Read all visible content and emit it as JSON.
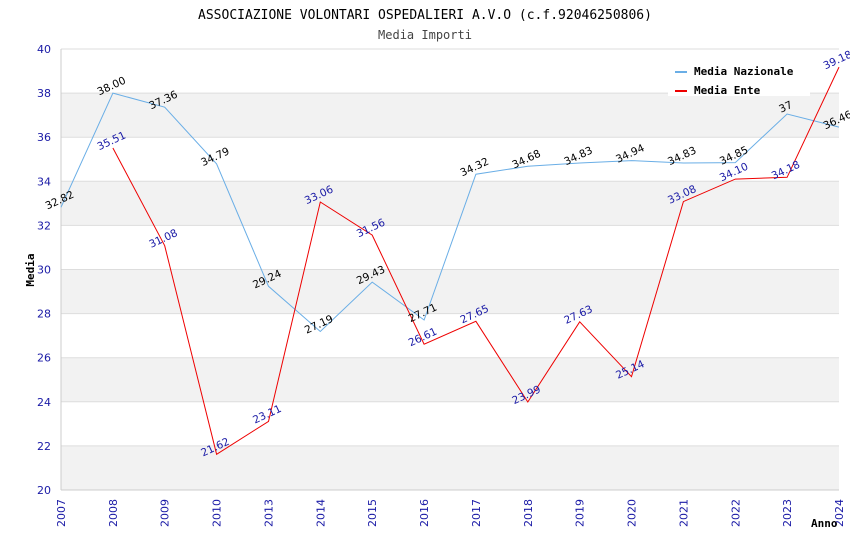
{
  "chart_data": {
    "type": "line",
    "title": "ASSOCIAZIONE VOLONTARI OSPEDALIERI A.V.O (c.f.92046250806)",
    "subtitle": "Media Importi",
    "xlabel": "Anno",
    "ylabel": "Media",
    "ylim": [
      20,
      40
    ],
    "yticks": [
      "20",
      "22",
      "24",
      "26",
      "28",
      "30",
      "32",
      "34",
      "36",
      "38",
      "40"
    ],
    "categories": [
      "2007",
      "2008",
      "2009",
      "2010",
      "2013",
      "2014",
      "2015",
      "2016",
      "2017",
      "2018",
      "2019",
      "2020",
      "2021",
      "2022",
      "2023",
      "2024"
    ],
    "grid": true,
    "legend_position": "top-right",
    "series": [
      {
        "name": "Media Nazionale",
        "color": "#6aaee6",
        "label_color": "#000000",
        "values": [
          32.82,
          38.0,
          37.36,
          34.79,
          29.24,
          27.19,
          29.43,
          27.71,
          34.32,
          34.68,
          34.83,
          34.94,
          34.83,
          34.85,
          37.05,
          36.46
        ],
        "labels": [
          "32.82",
          "38.00",
          "37.36",
          "34.79",
          "29.24",
          "27.19",
          "29.43",
          "27.71",
          "34.32",
          "34.68",
          "34.83",
          "34.94",
          "34.83",
          "34.85",
          "37",
          "36.46"
        ]
      },
      {
        "name": "Media Ente",
        "color": "#ee0000",
        "label_color": "#1a1aa6",
        "values": [
          null,
          35.51,
          31.08,
          21.62,
          23.11,
          33.06,
          31.56,
          26.61,
          27.65,
          23.99,
          27.63,
          25.14,
          33.08,
          34.1,
          34.18,
          39.18
        ],
        "labels": [
          "",
          "35.51",
          "31.08",
          "21.62",
          "23.11",
          "33.06",
          "31.56",
          "26.61",
          "27.65",
          "23.99",
          "27.63",
          "25.14",
          "33.08",
          "34.10",
          "34.18",
          "39.18"
        ]
      }
    ]
  }
}
